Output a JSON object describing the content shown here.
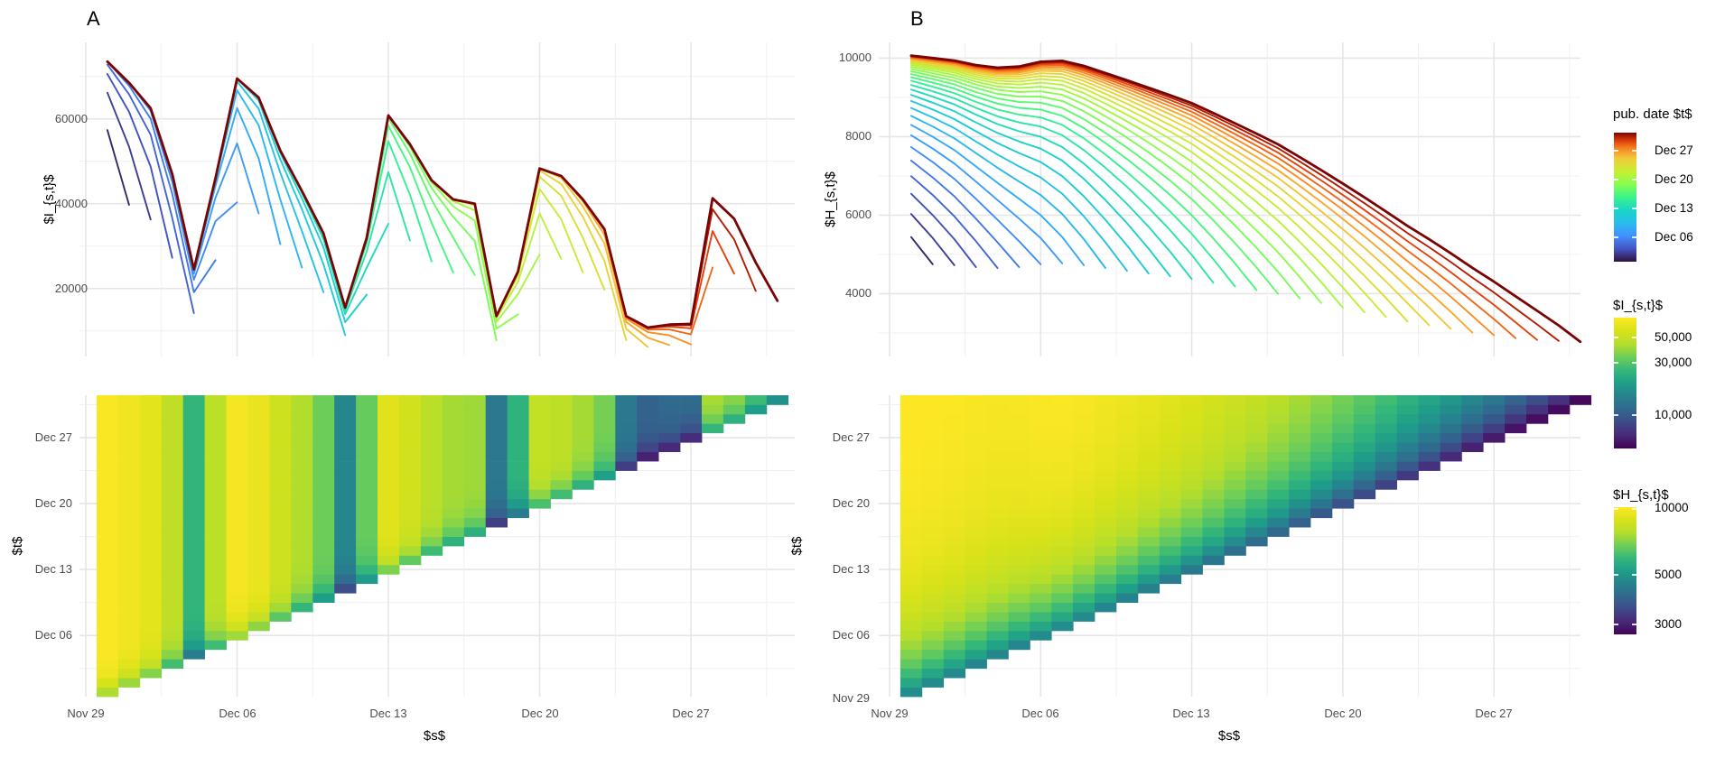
{
  "panelA": {
    "tag": "A",
    "line_chart": {
      "ylabel": "$I_{s,t}$",
      "yticks": [
        "60000",
        "40000",
        "20000"
      ]
    },
    "heatmap": {
      "ylabel": "$t$",
      "xlabel": "$s$",
      "yticks": [
        "Dec 27",
        "Dec 20",
        "Dec 13",
        "Dec 06"
      ],
      "xticks": [
        "Nov 29",
        "Dec 06",
        "Dec 13",
        "Dec 20",
        "Dec 27"
      ]
    }
  },
  "panelB": {
    "tag": "B",
    "line_chart": {
      "ylabel": "$H_{s,t}$",
      "yticks": [
        "10000",
        "8000",
        "6000",
        "4000"
      ]
    },
    "heatmap": {
      "ylabel": "$t$",
      "xlabel": "$s$",
      "yticks": [
        "Dec 27",
        "Dec 20",
        "Dec 13",
        "Dec 06",
        "Nov 29"
      ],
      "xticks": [
        "Nov 29",
        "Dec 06",
        "Dec 13",
        "Dec 20",
        "Dec 27"
      ]
    }
  },
  "legends": {
    "pub_date": {
      "title": "pub. date $t$",
      "labels": [
        "Dec 27",
        "Dec 20",
        "Dec 13",
        "Dec 06"
      ],
      "colormap": "turbo",
      "domain_dates": [
        "Nov 30",
        "Dec 31"
      ]
    },
    "incidence": {
      "title": "$I_{s,t}$",
      "labels": [
        "50,000",
        "30,000",
        "10,000"
      ],
      "colormap": "viridis",
      "scale": "log",
      "domain": [
        5000,
        75000
      ]
    },
    "hospitalization": {
      "title": "$H_{s,t}$",
      "labels": [
        "10000",
        "5000",
        "3000"
      ],
      "colormap": "viridis",
      "scale": "log",
      "domain": [
        2700,
        10000
      ]
    }
  },
  "chart_data": {
    "x_dates": [
      "Nov 30",
      "Dec 01",
      "Dec 02",
      "Dec 03",
      "Dec 04",
      "Dec 05",
      "Dec 06",
      "Dec 07",
      "Dec 08",
      "Dec 09",
      "Dec 10",
      "Dec 11",
      "Dec 12",
      "Dec 13",
      "Dec 14",
      "Dec 15",
      "Dec 16",
      "Dec 17",
      "Dec 18",
      "Dec 19",
      "Dec 20",
      "Dec 21",
      "Dec 22",
      "Dec 23",
      "Dec 24",
      "Dec 25",
      "Dec 26",
      "Dec 27",
      "Dec 28",
      "Dec 29",
      "Dec 30",
      "Dec 31"
    ],
    "panelA_lines": {
      "type": "line",
      "ylabel": "$I_{s,t}$",
      "xlabel_shared": "$s$",
      "ylim": [
        4000,
        78000
      ],
      "final_values": [
        73500,
        68500,
        62500,
        47000,
        24500,
        46000,
        69500,
        65000,
        52500,
        43000,
        33000,
        15500,
        32000,
        60800,
        54000,
        45500,
        41000,
        40000,
        13500,
        24000,
        48300,
        46500,
        41000,
        34000,
        13500,
        10800,
        11500,
        11800,
        43000,
        40500,
        33500,
        29500
      ],
      "pub_dates": "one line per publication date t from Dec 01 to Dec 31; line for t covers s = Nov 30 .. t",
      "reporting_completeness_by_lag": [
        0.58,
        0.78,
        0.9,
        0.96,
        0.99,
        1.0
      ],
      "value_rule": "I(s,t) = final_values[s] * completeness[min(t-s,5)]",
      "color_by": "publication date t, turbo colormap dark-navy(early) to dark-red(late)"
    },
    "panelA_triangle": {
      "type": "heatmap",
      "region": "reporting triangle: cell (s,t) drawn only when t >= s",
      "x": "$s$ = Nov 30 .. Dec 31",
      "y": "$t$ = Nov 30 .. Dec 31",
      "value_rule": "same as panelA_lines",
      "color_scale": "viridis, log",
      "color_domain": [
        5000,
        75000
      ]
    },
    "panelB_lines": {
      "type": "line",
      "ylabel": "$H_{s,t}$",
      "xlabel_shared": "$s$",
      "ylim": [
        2400,
        10400
      ],
      "final_values": [
        10150,
        10100,
        10050,
        9950,
        9900,
        9950,
        10100,
        10150,
        10050,
        9900,
        9750,
        9600,
        9450,
        9300,
        9100,
        8900,
        8700,
        8500,
        8250,
        8000,
        7750,
        7500,
        7250,
        7000,
        6800,
        6600,
        6400,
        6250,
        6100,
        6000,
        5950,
        5900
      ],
      "pub_dates": "one line per publication date t from Dec 01 to Dec 31; line for t covers s = Nov 30 .. t",
      "completeness_model": {
        "base": 0.47,
        "remainder": 0.53,
        "tau_days": 7.5
      },
      "value_rule": "H(s,t) = final_values[s] * (base + remainder*(1-exp(-(t-s)/tau_days)))",
      "color_by": "publication date t, turbo colormap dark-navy(early) to dark-red(late)"
    },
    "panelB_triangle": {
      "type": "heatmap",
      "region": "reporting triangle: cell (s,t) drawn only when t >= s",
      "x": "$s$ = Nov 30 .. Dec 31",
      "y": "$t$ = Nov 30 .. Dec 31",
      "value_rule": "same as panelB_lines",
      "color_scale": "viridis, log",
      "color_domain": [
        2700,
        10000
      ]
    }
  }
}
